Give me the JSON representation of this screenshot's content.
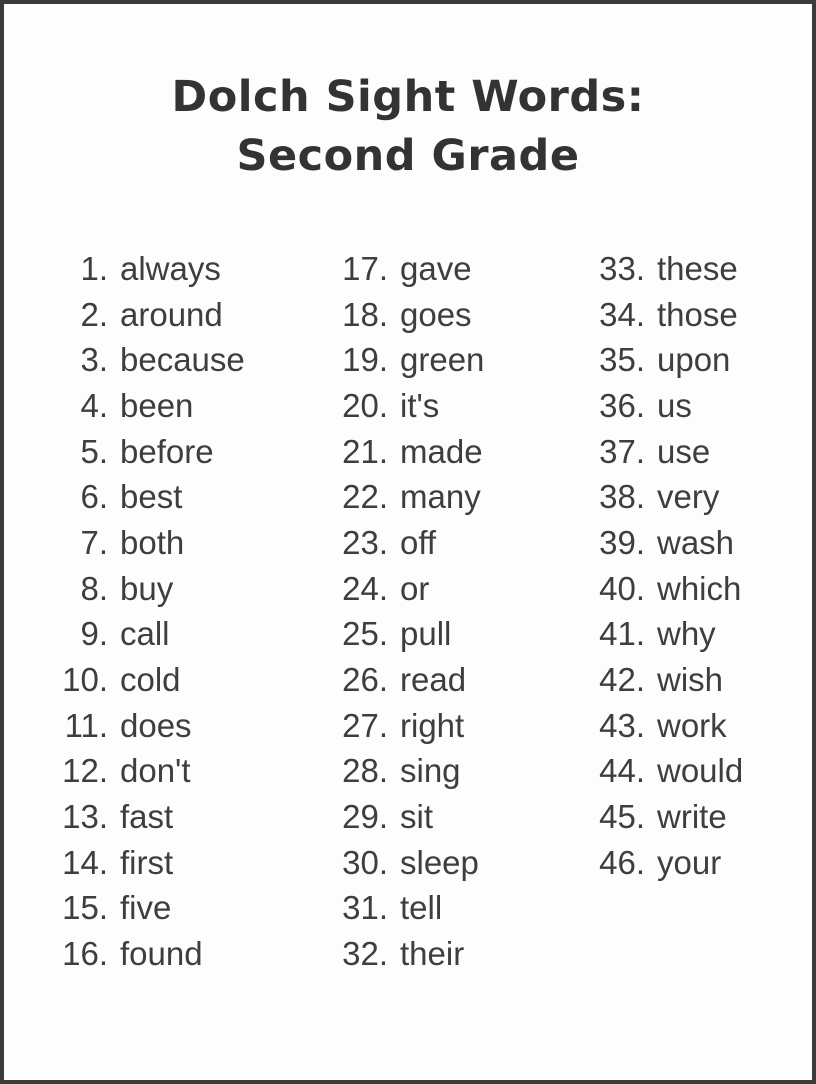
{
  "title": {
    "line1": "Dolch Sight Words:",
    "line2": "Second Grade"
  },
  "colors": {
    "title_text": "#333333",
    "list_text": "#3e3e3e",
    "background": "#fdfdfd",
    "border": "#3b3b3b"
  },
  "word_list": {
    "columns": [
      {
        "items": [
          {
            "number": "1.",
            "word": "always"
          },
          {
            "number": "2.",
            "word": "around"
          },
          {
            "number": "3.",
            "word": "because"
          },
          {
            "number": "4.",
            "word": "been"
          },
          {
            "number": "5.",
            "word": "before"
          },
          {
            "number": "6.",
            "word": "best"
          },
          {
            "number": "7.",
            "word": "both"
          },
          {
            "number": "8.",
            "word": "buy"
          },
          {
            "number": "9.",
            "word": "call"
          },
          {
            "number": "10.",
            "word": "cold"
          },
          {
            "number": "11.",
            "word": "does"
          },
          {
            "number": "12.",
            "word": "don't"
          },
          {
            "number": "13.",
            "word": "fast"
          },
          {
            "number": "14.",
            "word": "first"
          },
          {
            "number": "15.",
            "word": "five"
          },
          {
            "number": "16.",
            "word": "found"
          }
        ]
      },
      {
        "items": [
          {
            "number": "17.",
            "word": "gave"
          },
          {
            "number": "18.",
            "word": "goes"
          },
          {
            "number": "19.",
            "word": "green"
          },
          {
            "number": "20.",
            "word": "it's"
          },
          {
            "number": "21.",
            "word": "made"
          },
          {
            "number": "22.",
            "word": "many"
          },
          {
            "number": "23.",
            "word": "off"
          },
          {
            "number": "24.",
            "word": "or"
          },
          {
            "number": "25.",
            "word": "pull"
          },
          {
            "number": "26.",
            "word": "read"
          },
          {
            "number": "27.",
            "word": "right"
          },
          {
            "number": "28.",
            "word": "sing"
          },
          {
            "number": "29.",
            "word": "sit"
          },
          {
            "number": "30.",
            "word": "sleep"
          },
          {
            "number": "31.",
            "word": "tell"
          },
          {
            "number": "32.",
            "word": "their"
          }
        ]
      },
      {
        "items": [
          {
            "number": "33.",
            "word": "these"
          },
          {
            "number": "34.",
            "word": "those"
          },
          {
            "number": "35.",
            "word": "upon"
          },
          {
            "number": "36.",
            "word": "us"
          },
          {
            "number": "37.",
            "word": "use"
          },
          {
            "number": "38.",
            "word": "very"
          },
          {
            "number": "39.",
            "word": "wash"
          },
          {
            "number": "40.",
            "word": "which"
          },
          {
            "number": "41.",
            "word": "why"
          },
          {
            "number": "42.",
            "word": "wish"
          },
          {
            "number": "43.",
            "word": "work"
          },
          {
            "number": "44.",
            "word": "would"
          },
          {
            "number": "45.",
            "word": "write"
          },
          {
            "number": "46.",
            "word": "your"
          }
        ]
      }
    ]
  }
}
